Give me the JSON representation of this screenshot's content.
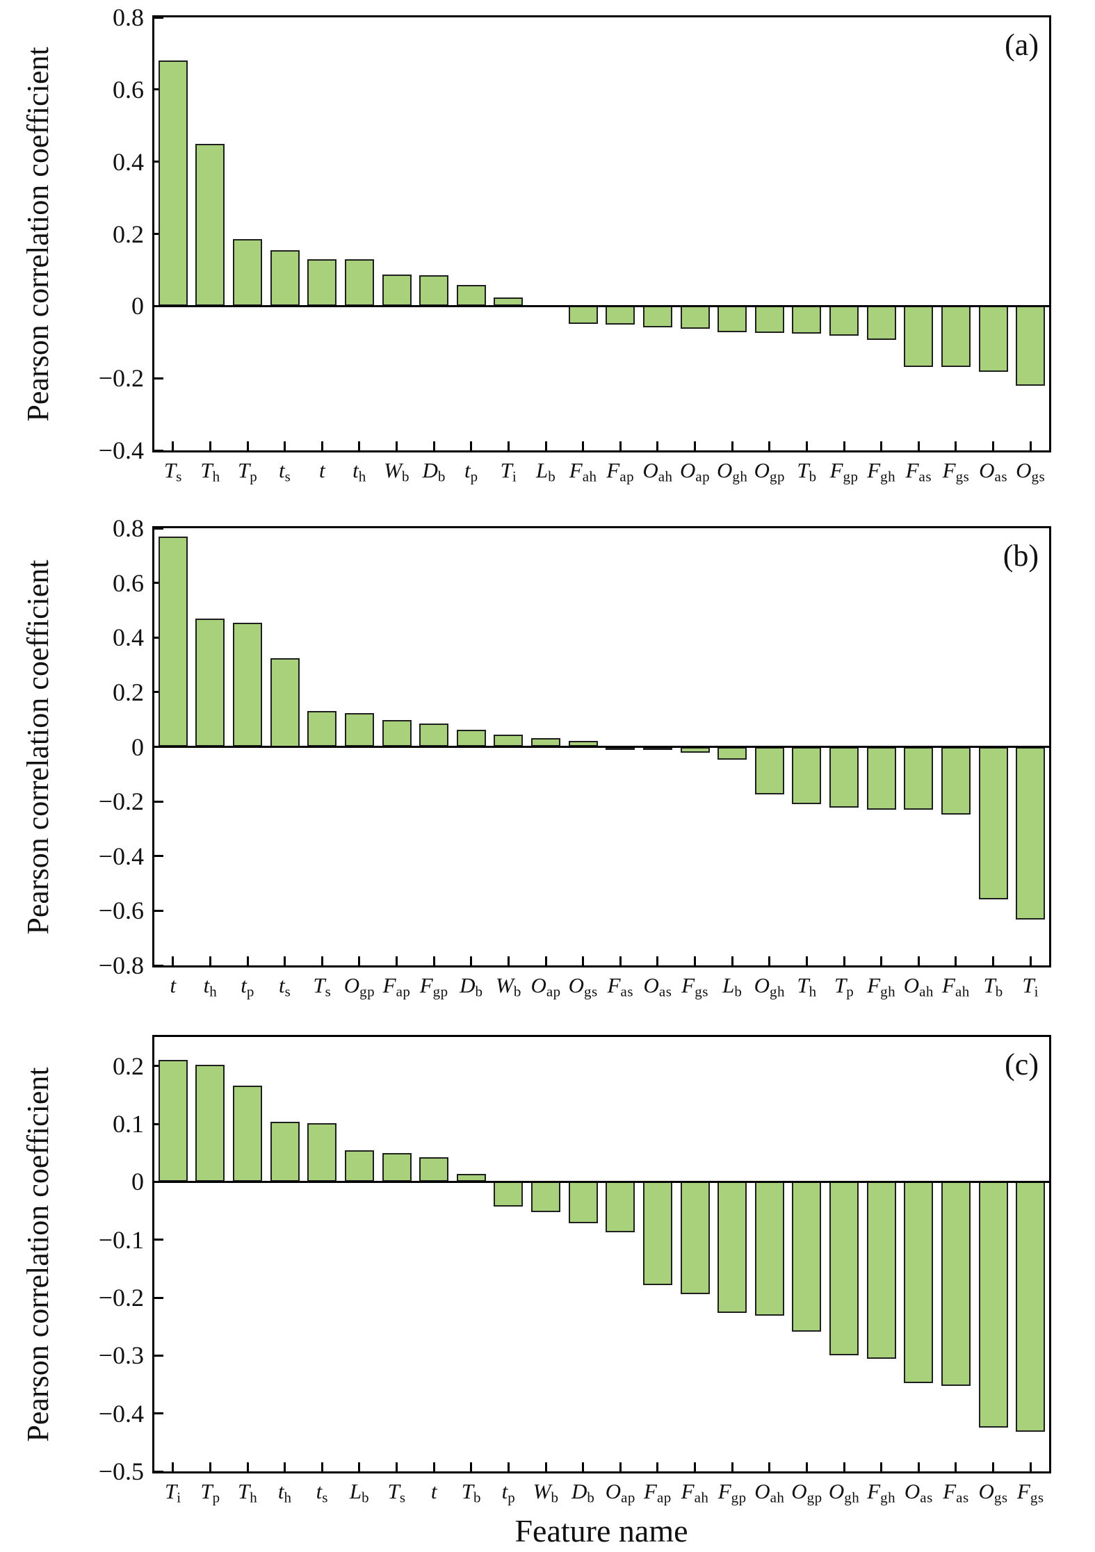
{
  "figure": {
    "xlabel": "Feature name",
    "ylabel": "Pearson correlation coefficient",
    "bar_fill": "#a9d17c",
    "bar_edge": "#1f1f1f",
    "axis_color": "#000000",
    "background": "#ffffff"
  },
  "chart_data": [
    {
      "type": "bar",
      "panel_label": "(a)",
      "ylabel": "Pearson correlation coefficient",
      "xlabel": "",
      "ylim": [
        -0.4,
        0.8
      ],
      "yticks": [
        0.8,
        0.6,
        0.4,
        0.2,
        0,
        -0.2,
        -0.4
      ],
      "grid": false,
      "legend": "none",
      "categories": [
        "T_s",
        "T_h",
        "T_p",
        "t_s",
        "t",
        "t_h",
        "W_b",
        "D_b",
        "t_p",
        "T_i",
        "L_b",
        "F_ah",
        "F_ap",
        "O_ah",
        "O_ap",
        "O_gh",
        "O_gp",
        "T_b",
        "F_gp",
        "F_gh",
        "F_as",
        "F_gs",
        "O_as",
        "O_gs"
      ],
      "values": [
        0.68,
        0.45,
        0.185,
        0.155,
        0.13,
        0.13,
        0.088,
        0.085,
        0.058,
        0.024,
        0.0,
        -0.049,
        -0.051,
        -0.06,
        -0.062,
        -0.073,
        -0.075,
        -0.077,
        -0.082,
        -0.094,
        -0.168,
        -0.168,
        -0.182,
        -0.22
      ]
    },
    {
      "type": "bar",
      "panel_label": "(b)",
      "ylabel": "Pearson correlation coefficient",
      "xlabel": "",
      "ylim": [
        -0.8,
        0.8
      ],
      "yticks": [
        0.8,
        0.6,
        0.4,
        0.2,
        0,
        -0.2,
        -0.4,
        -0.6,
        -0.8
      ],
      "grid": false,
      "legend": "none",
      "categories": [
        "t",
        "t_h",
        "t_p",
        "t_s",
        "T_s",
        "O_gp",
        "F_ap",
        "F_gp",
        "D_b",
        "W_b",
        "O_ap",
        "O_gs",
        "F_as",
        "O_as",
        "F_gs",
        "L_b",
        "O_gh",
        "T_h",
        "T_p",
        "F_gh",
        "O_ah",
        "F_ah",
        "T_b",
        "T_i"
      ],
      "values": [
        0.77,
        0.47,
        0.455,
        0.325,
        0.13,
        0.124,
        0.098,
        0.084,
        0.062,
        0.045,
        0.032,
        0.022,
        -0.004,
        -0.01,
        -0.022,
        -0.047,
        -0.174,
        -0.21,
        -0.222,
        -0.229,
        -0.231,
        -0.247,
        -0.559,
        -0.633
      ]
    },
    {
      "type": "bar",
      "panel_label": "(c)",
      "ylabel": "Pearson correlation coefficient",
      "xlabel": "Feature name",
      "ylim": [
        -0.5,
        0.25
      ],
      "yticks": [
        0.2,
        0.1,
        0,
        -0.1,
        -0.2,
        -0.3,
        -0.4,
        -0.5
      ],
      "grid": false,
      "legend": "none",
      "categories": [
        "T_i",
        "T_p",
        "T_h",
        "t_h",
        "t_s",
        "L_b",
        "T_s",
        "t",
        "T_b",
        "t_p",
        "W_b",
        "D_b",
        "O_ap",
        "F_ap",
        "F_ah",
        "F_gp",
        "O_ah",
        "O_gp",
        "O_gh",
        "F_gh",
        "O_as",
        "F_as",
        "O_gs",
        "F_gs"
      ],
      "values": [
        0.21,
        0.202,
        0.166,
        0.104,
        0.101,
        0.054,
        0.05,
        0.042,
        0.014,
        -0.043,
        -0.052,
        -0.072,
        -0.087,
        -0.178,
        -0.194,
        -0.227,
        -0.231,
        -0.259,
        -0.3,
        -0.306,
        -0.348,
        -0.353,
        -0.425,
        -0.432
      ]
    }
  ]
}
